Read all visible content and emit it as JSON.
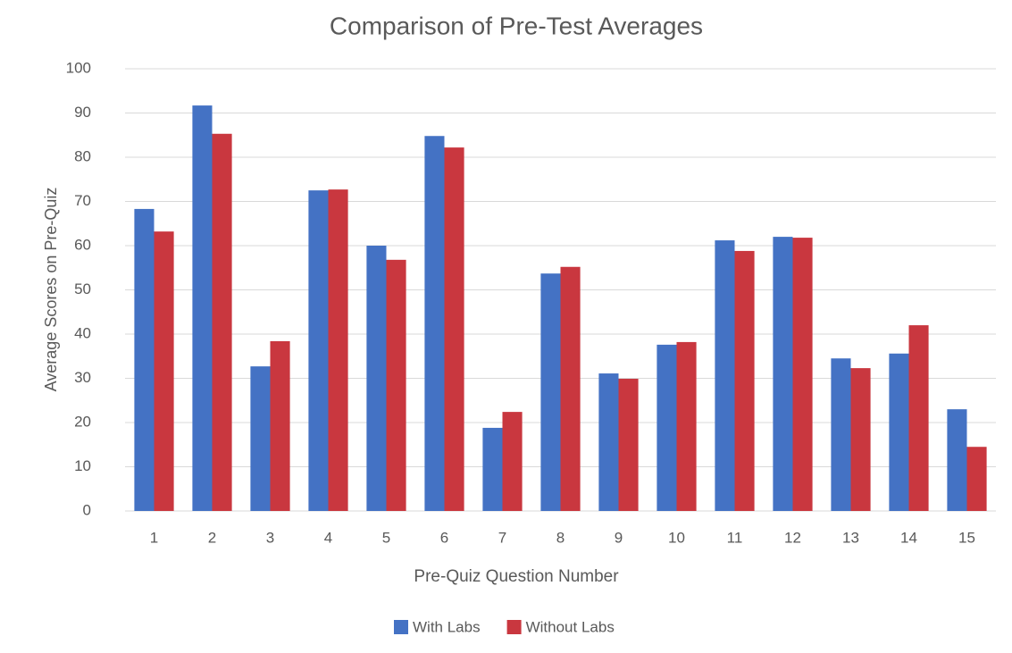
{
  "chart_data": {
    "type": "bar",
    "title": "Comparison of  Pre-Test Averages",
    "x_label": "Pre-Quiz Question Number",
    "y_label": "Average Scores on Pre-Quiz",
    "categories": [
      "1",
      "2",
      "3",
      "4",
      "5",
      "6",
      "7",
      "8",
      "9",
      "10",
      "11",
      "12",
      "13",
      "14",
      "15"
    ],
    "series": [
      {
        "name": "With Labs",
        "color": "#4472c4",
        "values": [
          68.3,
          91.7,
          32.7,
          72.5,
          60,
          84.8,
          18.8,
          53.7,
          31.1,
          37.6,
          61.2,
          62,
          34.5,
          35.6,
          23
        ]
      },
      {
        "name": "Without Labs",
        "color": "#c9373f",
        "values": [
          63.2,
          85.3,
          38.4,
          72.7,
          56.8,
          82.2,
          22.4,
          55.2,
          29.9,
          38.2,
          58.8,
          61.8,
          32.3,
          42,
          14.5
        ]
      }
    ],
    "ylim": [
      0,
      100
    ],
    "yticks": [
      0,
      10,
      20,
      30,
      40,
      50,
      60,
      70,
      80,
      90,
      100
    ],
    "grid": true,
    "legend": "bottom"
  }
}
